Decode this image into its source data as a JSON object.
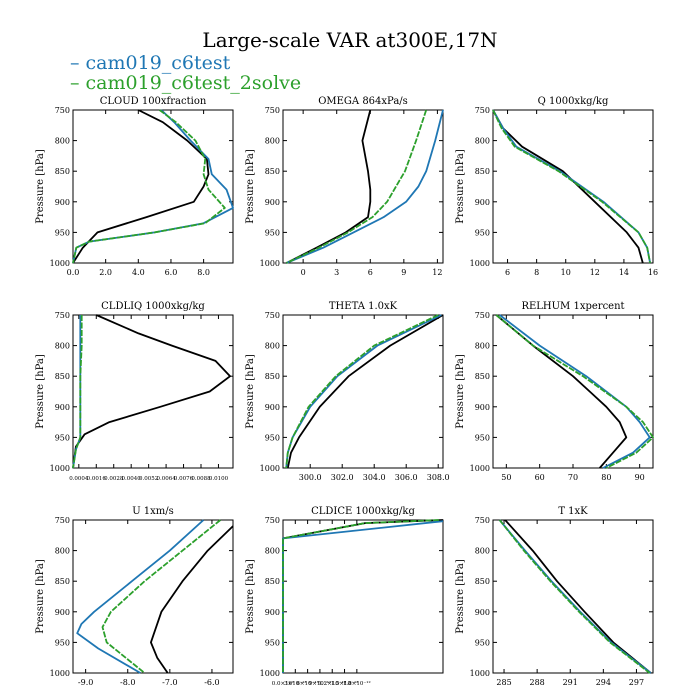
{
  "title": "Large-scale VAR at300E,17N",
  "legend": [
    {
      "label": "– cam019_c6test",
      "color": "#1f77b4"
    },
    {
      "label": "– cam019_c6test_2solve",
      "color": "#2ca02c"
    }
  ],
  "colors": {
    "control": "#000000",
    "case1": "#1f77b4",
    "case2": "#2ca02c"
  },
  "chart_data": [
    {
      "type": "line",
      "title": "CLOUD  100xfraction",
      "xlim": [
        0,
        9.8
      ],
      "ylim": [
        1000,
        750
      ],
      "ylabel": "Pressure [hPa]",
      "xticks": [
        0,
        2,
        4,
        6,
        8
      ],
      "xticklabels": [
        "0.0",
        "2.0",
        "4.0",
        "6.0",
        "8.0"
      ],
      "yticks": [
        750,
        800,
        850,
        900,
        950,
        1000
      ],
      "series": [
        {
          "name": "control",
          "color": "#000000",
          "y": [
            750,
            770,
            800,
            830,
            855,
            875,
            900,
            925,
            950,
            975,
            1000
          ],
          "values": [
            4.0,
            5.5,
            7.0,
            8.2,
            8.3,
            8.0,
            7.4,
            4.5,
            1.5,
            0.6,
            0.0
          ]
        },
        {
          "name": "cam019_c6test",
          "color": "#1f77b4",
          "y": [
            750,
            770,
            800,
            830,
            855,
            880,
            910,
            935,
            950,
            965,
            975,
            1000
          ],
          "values": [
            5.4,
            6.2,
            7.2,
            8.3,
            8.5,
            9.4,
            9.8,
            8.0,
            5.0,
            1.0,
            0.2,
            0.0
          ]
        },
        {
          "name": "cam019_c6test_2solve",
          "color": "#2ca02c",
          "y": [
            750,
            770,
            800,
            830,
            855,
            880,
            910,
            935,
            950,
            965,
            975,
            1000
          ],
          "values": [
            5.3,
            6.3,
            7.5,
            8.1,
            8.0,
            8.3,
            9.3,
            8.1,
            5.0,
            1.0,
            0.2,
            0.0
          ]
        }
      ]
    },
    {
      "type": "line",
      "title": "OMEGA  864xPa/s",
      "xlim": [
        -1.8,
        12.5
      ],
      "ylim": [
        1000,
        750
      ],
      "ylabel": "Pressure [hPa]",
      "xticks": [
        0,
        3,
        6,
        9,
        12
      ],
      "xticklabels": [
        "0",
        "3",
        "6",
        "9",
        "12"
      ],
      "yticks": [
        750,
        800,
        850,
        900,
        950,
        1000
      ],
      "series": [
        {
          "name": "control",
          "color": "#000000",
          "y": [
            750,
            800,
            850,
            880,
            900,
            925,
            950,
            975,
            1000
          ],
          "values": [
            6.0,
            5.3,
            5.8,
            6.0,
            6.0,
            5.8,
            3.8,
            1.2,
            -1.5
          ]
        },
        {
          "name": "cam019_c6test",
          "color": "#1f77b4",
          "y": [
            750,
            800,
            850,
            875,
            900,
            925,
            950,
            975,
            1000
          ],
          "values": [
            12.5,
            11.8,
            11.0,
            10.3,
            9.2,
            7.2,
            4.5,
            1.8,
            -1.5
          ]
        },
        {
          "name": "cam019_c6test_2solve",
          "color": "#2ca02c",
          "y": [
            750,
            800,
            850,
            875,
            900,
            925,
            950,
            975,
            1000
          ],
          "values": [
            11.0,
            10.1,
            9.1,
            8.3,
            7.5,
            6.2,
            4.0,
            1.4,
            -1.5
          ]
        }
      ]
    },
    {
      "type": "line",
      "title": "Q  1000xkg/kg",
      "xlim": [
        5,
        16
      ],
      "ylim": [
        1000,
        750
      ],
      "ylabel": "Pressure [hPa]",
      "xticks": [
        6,
        8,
        10,
        12,
        14,
        16
      ],
      "xticklabels": [
        "6",
        "8",
        "10",
        "12",
        "14",
        "16"
      ],
      "yticks": [
        750,
        800,
        850,
        900,
        950,
        1000
      ],
      "series": [
        {
          "name": "control",
          "color": "#000000",
          "y": [
            750,
            780,
            810,
            850,
            900,
            950,
            975,
            1000
          ],
          "values": [
            5.0,
            5.7,
            7.0,
            9.8,
            12.0,
            14.2,
            15.0,
            15.3
          ]
        },
        {
          "name": "cam019_c6test",
          "color": "#1f77b4",
          "y": [
            750,
            780,
            810,
            850,
            900,
            950,
            975,
            1000
          ],
          "values": [
            5.0,
            5.7,
            6.6,
            9.6,
            12.6,
            15.0,
            15.6,
            15.8
          ]
        },
        {
          "name": "cam019_c6test_2solve",
          "color": "#2ca02c",
          "y": [
            750,
            780,
            810,
            850,
            900,
            950,
            975,
            1000
          ],
          "values": [
            5.0,
            5.6,
            6.5,
            9.5,
            12.5,
            15.0,
            15.6,
            15.8
          ]
        }
      ]
    },
    {
      "type": "line",
      "title": "CLDLIQ  1000xkg/kg",
      "xlim": [
        0,
        0.011
      ],
      "ylim": [
        1000,
        750
      ],
      "ylabel": "Pressure [hPa]",
      "xticks": [
        0.0004,
        0.0016,
        0.0028,
        0.004,
        0.0052,
        0.0064,
        0.0076,
        0.0088,
        0.01
      ],
      "xticklabels": [
        "0.0004",
        "0.0016",
        "0.0028",
        "0.0040",
        "0.0052",
        "0.0064",
        "0.0076",
        "0.0088",
        "0.0100"
      ],
      "yticks": [
        750,
        800,
        850,
        900,
        950,
        1000
      ],
      "series": [
        {
          "name": "control",
          "color": "#000000",
          "y": [
            750,
            780,
            800,
            825,
            850,
            875,
            900,
            925,
            945,
            965,
            1000
          ],
          "values": [
            0.0016,
            0.0045,
            0.0068,
            0.0098,
            0.0108,
            0.0094,
            0.006,
            0.0025,
            0.0008,
            0.0002,
            0.0
          ]
        },
        {
          "name": "cam019_c6test",
          "color": "#1f77b4",
          "y": [
            750,
            800,
            850,
            900,
            950,
            970,
            1000
          ],
          "values": [
            0.0005,
            0.0005,
            0.0005,
            0.0005,
            0.0005,
            0.0002,
            0.0
          ]
        },
        {
          "name": "cam019_c6test_2solve",
          "color": "#2ca02c",
          "y": [
            750,
            800,
            850,
            900,
            950,
            970,
            1000
          ],
          "values": [
            0.0006,
            0.0006,
            0.0005,
            0.0005,
            0.0005,
            0.0002,
            0.0
          ]
        }
      ]
    },
    {
      "type": "line",
      "title": "THETA  1.0xK",
      "xlim": [
        298.3,
        308.3
      ],
      "ylim": [
        1000,
        750
      ],
      "ylabel": "Pressure [hPa]",
      "xticks": [
        300,
        302,
        304,
        306,
        308
      ],
      "xticklabels": [
        "300.0",
        "302.0",
        "304.0",
        "306.0",
        "308.0"
      ],
      "yticks": [
        750,
        800,
        850,
        900,
        950,
        1000
      ],
      "series": [
        {
          "name": "control",
          "color": "#000000",
          "y": [
            750,
            800,
            850,
            900,
            950,
            975,
            1000
          ],
          "values": [
            308.3,
            305.0,
            302.4,
            300.6,
            299.3,
            298.8,
            298.6
          ]
        },
        {
          "name": "cam019_c6test",
          "color": "#1f77b4",
          "y": [
            750,
            800,
            850,
            900,
            950,
            975,
            1000
          ],
          "values": [
            308.2,
            304.2,
            301.7,
            300.0,
            298.9,
            298.6,
            298.5
          ]
        },
        {
          "name": "cam019_c6test_2solve",
          "color": "#2ca02c",
          "y": [
            750,
            800,
            850,
            900,
            950,
            975,
            1000
          ],
          "values": [
            308.0,
            304.0,
            301.6,
            299.9,
            298.9,
            298.6,
            298.5
          ]
        }
      ]
    },
    {
      "type": "line",
      "title": "RELHUM  1xpercent",
      "xlim": [
        46,
        94
      ],
      "ylim": [
        1000,
        750
      ],
      "ylabel": "Pressure [hPa]",
      "xticks": [
        50,
        60,
        70,
        80,
        90
      ],
      "xticklabels": [
        "50",
        "60",
        "70",
        "80",
        "90"
      ],
      "yticks": [
        750,
        800,
        850,
        900,
        950,
        1000
      ],
      "series": [
        {
          "name": "control",
          "color": "#000000",
          "y": [
            750,
            800,
            850,
            875,
            900,
            925,
            950,
            975,
            1000
          ],
          "values": [
            47.0,
            58.0,
            70.0,
            75.0,
            80.0,
            84.0,
            86.0,
            82.0,
            78.0
          ]
        },
        {
          "name": "cam019_c6test",
          "color": "#1f77b4",
          "y": [
            750,
            800,
            850,
            900,
            925,
            950,
            975,
            1000
          ],
          "values": [
            48.0,
            60.0,
            74.0,
            86.0,
            90.0,
            93.0,
            88.0,
            79.0
          ]
        },
        {
          "name": "cam019_c6test_2solve",
          "color": "#2ca02c",
          "y": [
            750,
            800,
            850,
            900,
            925,
            950,
            975,
            1000
          ],
          "values": [
            47.0,
            58.0,
            73.0,
            86.0,
            91.0,
            94.0,
            89.0,
            80.0
          ]
        }
      ]
    },
    {
      "type": "line",
      "title": "U  1xm/s",
      "xlim": [
        -9.3,
        -5.5
      ],
      "ylim": [
        1000,
        750
      ],
      "ylabel": "Pressure [hPa]",
      "xticks": [
        -9,
        -8,
        -7,
        -6
      ],
      "xticklabels": [
        "-9.0",
        "-8.0",
        "-7.0",
        "-6.0"
      ],
      "yticks": [
        750,
        800,
        850,
        900,
        950,
        1000
      ],
      "series": [
        {
          "name": "control",
          "color": "#000000",
          "y": [
            760,
            800,
            850,
            900,
            950,
            975,
            1000
          ],
          "values": [
            -5.5,
            -6.1,
            -6.7,
            -7.2,
            -7.45,
            -7.3,
            -7.05
          ]
        },
        {
          "name": "cam019_c6test",
          "color": "#1f77b4",
          "y": [
            750,
            800,
            850,
            900,
            920,
            935,
            960,
            1000
          ],
          "values": [
            -6.2,
            -7.0,
            -7.9,
            -8.8,
            -9.1,
            -9.2,
            -8.7,
            -7.7
          ]
        },
        {
          "name": "cam019_c6test_2solve",
          "color": "#2ca02c",
          "y": [
            750,
            800,
            850,
            900,
            925,
            950,
            1000
          ],
          "values": [
            -5.8,
            -6.7,
            -7.6,
            -8.4,
            -8.6,
            -8.5,
            -7.6
          ]
        }
      ]
    },
    {
      "type": "line",
      "title": "CLDICE  1000xkg/kg",
      "xlim": [
        0,
        3.9e-12
      ],
      "ylim": [
        1000,
        750
      ],
      "ylabel": "Pressure [hPa]",
      "xticks": [
        0,
        3e-13,
        6e-13,
        9e-13,
        1.2e-12,
        1.5e-12,
        1.8e-12
      ],
      "xticklabels": [
        "0.0×10⁰",
        "3×10⁻¹³",
        "6×10⁻¹³",
        "9×10⁻¹³",
        "1.2×10⁻¹²",
        "1.5×10⁻¹²",
        "1.8×10⁻¹²"
      ],
      "yticks": [
        750,
        800,
        850,
        900,
        950,
        1000
      ],
      "series": [
        {
          "name": "control",
          "color": "#000000",
          "y": [
            750,
            755,
            780,
            1000
          ],
          "values": [
            3.9e-12,
            2e-12,
            0.0,
            0.0
          ]
        },
        {
          "name": "cam019_c6test",
          "color": "#1f77b4",
          "y": [
            752,
            780,
            1000
          ],
          "values": [
            3.9e-12,
            0.0,
            0.0
          ]
        },
        {
          "name": "cam019_c6test_2solve",
          "color": "#2ca02c",
          "y": [
            750,
            755,
            780,
            1000
          ],
          "values": [
            3.8e-12,
            2e-12,
            0.0,
            0.0
          ]
        }
      ]
    },
    {
      "type": "line",
      "title": "T  1xK",
      "xlim": [
        284,
        298.5
      ],
      "ylim": [
        1000,
        750
      ],
      "ylabel": "Pressure [hPa]",
      "xticks": [
        285,
        288,
        291,
        294,
        297
      ],
      "xticklabels": [
        "285",
        "288",
        "291",
        "294",
        "297"
      ],
      "yticks": [
        750,
        800,
        850,
        900,
        950,
        1000
      ],
      "series": [
        {
          "name": "control",
          "color": "#000000",
          "y": [
            750,
            800,
            850,
            900,
            950,
            1000
          ],
          "values": [
            285.1,
            287.6,
            289.8,
            292.3,
            294.9,
            298.3
          ]
        },
        {
          "name": "cam019_c6test",
          "color": "#1f77b4",
          "y": [
            750,
            800,
            850,
            900,
            950,
            1000
          ],
          "values": [
            284.6,
            286.9,
            289.3,
            291.9,
            294.7,
            298.3
          ]
        },
        {
          "name": "cam019_c6test_2solve",
          "color": "#2ca02c",
          "y": [
            750,
            800,
            850,
            900,
            950,
            1000
          ],
          "values": [
            284.6,
            286.8,
            289.2,
            291.8,
            294.6,
            298.2
          ]
        }
      ]
    }
  ]
}
